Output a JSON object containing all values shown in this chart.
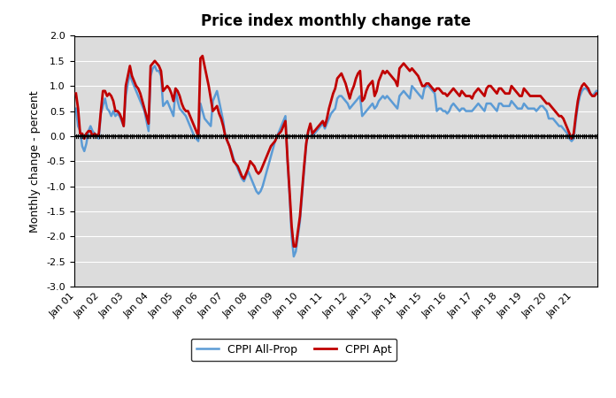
{
  "title": "Price index monthly change rate",
  "ylabel": "Monthly change - percent",
  "ylim": [
    -3.0,
    2.0
  ],
  "yticks": [
    -3.0,
    -2.5,
    -2.0,
    -1.5,
    -1.0,
    -0.5,
    0.0,
    0.5,
    1.0,
    1.5,
    2.0
  ],
  "color_allprop": "#5B9BD5",
  "color_apt": "#C00000",
  "zero_line_color": "#000000",
  "background_color": "#DCDCDC",
  "legend_labels": [
    "CPPI All-Prop",
    "CPPI Apt"
  ],
  "xtick_labels": [
    "Jan 01",
    "Jan 02",
    "Jan 03",
    "Jan 04",
    "Jan 05",
    "Jan 06",
    "Jan 07",
    "Jan 08",
    "Jan 09",
    "Jan 10",
    "Jan 11",
    "Jan 12",
    "Jan 13",
    "Jan 14",
    "Jan 15",
    "Jan 16",
    "Jan 17",
    "Jan 18",
    "Jan 19",
    "Jan 20",
    "Jan 21"
  ],
  "cppi_allprop": [
    0.55,
    0.2,
    0.1,
    -0.2,
    -0.3,
    -0.15,
    0.1,
    0.2,
    0.1,
    0.05,
    0.0,
    -0.05,
    0.45,
    0.6,
    0.75,
    0.55,
    0.5,
    0.4,
    0.5,
    0.4,
    0.45,
    0.4,
    0.3,
    0.2,
    0.8,
    1.05,
    1.25,
    1.1,
    1.0,
    0.9,
    0.8,
    0.7,
    0.6,
    0.5,
    0.3,
    0.1,
    1.2,
    1.35,
    1.4,
    1.3,
    1.3,
    1.2,
    0.6,
    0.65,
    0.7,
    0.6,
    0.5,
    0.4,
    0.95,
    0.7,
    0.55,
    0.5,
    0.45,
    0.4,
    0.3,
    0.2,
    0.1,
    0.0,
    -0.05,
    -0.1,
    0.65,
    0.5,
    0.35,
    0.3,
    0.25,
    0.2,
    0.7,
    0.8,
    0.9,
    0.7,
    0.5,
    0.3,
    0.0,
    -0.1,
    -0.2,
    -0.3,
    -0.45,
    -0.55,
    -0.65,
    -0.75,
    -0.85,
    -0.9,
    -0.8,
    -0.7,
    -0.8,
    -0.9,
    -1.0,
    -1.1,
    -1.15,
    -1.1,
    -1.0,
    -0.85,
    -0.7,
    -0.55,
    -0.4,
    -0.25,
    -0.1,
    0.0,
    0.1,
    0.2,
    0.3,
    0.4,
    -0.5,
    -1.2,
    -2.0,
    -2.4,
    -2.3,
    -2.0,
    -1.7,
    -1.2,
    -0.7,
    -0.2,
    0.1,
    0.2,
    0.0,
    0.05,
    0.1,
    0.15,
    0.2,
    0.25,
    0.15,
    0.25,
    0.35,
    0.45,
    0.5,
    0.55,
    0.75,
    0.8,
    0.8,
    0.75,
    0.7,
    0.65,
    0.55,
    0.6,
    0.65,
    0.7,
    0.75,
    0.8,
    0.4,
    0.45,
    0.5,
    0.55,
    0.6,
    0.65,
    0.55,
    0.6,
    0.7,
    0.75,
    0.8,
    0.75,
    0.8,
    0.75,
    0.7,
    0.65,
    0.6,
    0.55,
    0.8,
    0.85,
    0.9,
    0.85,
    0.8,
    0.75,
    1.0,
    0.95,
    0.9,
    0.85,
    0.8,
    0.75,
    0.95,
    1.0,
    1.0,
    0.95,
    0.9,
    0.85,
    0.5,
    0.55,
    0.55,
    0.5,
    0.5,
    0.45,
    0.5,
    0.6,
    0.65,
    0.6,
    0.55,
    0.5,
    0.55,
    0.55,
    0.5,
    0.5,
    0.5,
    0.5,
    0.55,
    0.6,
    0.65,
    0.6,
    0.55,
    0.5,
    0.65,
    0.65,
    0.65,
    0.6,
    0.55,
    0.5,
    0.65,
    0.65,
    0.6,
    0.6,
    0.6,
    0.6,
    0.7,
    0.65,
    0.6,
    0.55,
    0.55,
    0.55,
    0.65,
    0.6,
    0.55,
    0.55,
    0.55,
    0.55,
    0.5,
    0.55,
    0.6,
    0.6,
    0.55,
    0.5,
    0.35,
    0.35,
    0.35,
    0.3,
    0.25,
    0.2,
    0.2,
    0.15,
    0.1,
    0.05,
    -0.05,
    -0.1,
    -0.05,
    0.3,
    0.6,
    0.8,
    0.9,
    0.95,
    0.95,
    0.9,
    0.85,
    0.8,
    0.85,
    0.9
  ],
  "cppi_apt": [
    0.85,
    0.55,
    0.05,
    0.05,
    -0.05,
    0.05,
    0.1,
    0.1,
    0.0,
    0.05,
    0.0,
    0.05,
    0.5,
    0.9,
    0.9,
    0.8,
    0.85,
    0.8,
    0.7,
    0.5,
    0.5,
    0.45,
    0.35,
    0.2,
    1.0,
    1.2,
    1.4,
    1.2,
    1.1,
    1.0,
    0.95,
    0.85,
    0.7,
    0.55,
    0.4,
    0.25,
    1.4,
    1.45,
    1.5,
    1.45,
    1.4,
    1.3,
    0.9,
    0.95,
    1.0,
    0.95,
    0.85,
    0.7,
    0.95,
    0.9,
    0.8,
    0.65,
    0.55,
    0.5,
    0.5,
    0.4,
    0.3,
    0.2,
    0.1,
    0.0,
    1.55,
    1.6,
    1.4,
    1.2,
    1.0,
    0.75,
    0.5,
    0.55,
    0.6,
    0.45,
    0.35,
    0.2,
    0.0,
    -0.1,
    -0.2,
    -0.35,
    -0.5,
    -0.55,
    -0.6,
    -0.7,
    -0.8,
    -0.85,
    -0.75,
    -0.65,
    -0.5,
    -0.55,
    -0.6,
    -0.7,
    -0.75,
    -0.7,
    -0.6,
    -0.5,
    -0.4,
    -0.3,
    -0.2,
    -0.15,
    -0.1,
    0.0,
    0.05,
    0.1,
    0.2,
    0.3,
    -0.45,
    -1.1,
    -1.8,
    -2.2,
    -2.2,
    -1.9,
    -1.6,
    -1.1,
    -0.6,
    -0.15,
    0.1,
    0.25,
    0.05,
    0.1,
    0.15,
    0.2,
    0.25,
    0.3,
    0.2,
    0.35,
    0.55,
    0.7,
    0.85,
    0.95,
    1.15,
    1.2,
    1.25,
    1.15,
    1.05,
    0.9,
    0.75,
    0.9,
    1.0,
    1.15,
    1.25,
    1.3,
    0.7,
    0.75,
    0.9,
    1.0,
    1.05,
    1.1,
    0.8,
    0.9,
    1.1,
    1.2,
    1.3,
    1.25,
    1.3,
    1.25,
    1.2,
    1.15,
    1.1,
    1.0,
    1.35,
    1.4,
    1.45,
    1.4,
    1.35,
    1.3,
    1.35,
    1.3,
    1.25,
    1.2,
    1.1,
    1.0,
    1.0,
    1.05,
    1.05,
    1.0,
    0.95,
    0.9,
    0.95,
    0.95,
    0.9,
    0.85,
    0.85,
    0.8,
    0.85,
    0.9,
    0.95,
    0.9,
    0.85,
    0.8,
    0.9,
    0.85,
    0.8,
    0.8,
    0.8,
    0.75,
    0.85,
    0.9,
    0.95,
    0.9,
    0.85,
    0.8,
    0.95,
    1.0,
    1.0,
    0.95,
    0.9,
    0.85,
    0.95,
    0.95,
    0.9,
    0.85,
    0.85,
    0.85,
    1.0,
    0.95,
    0.9,
    0.85,
    0.8,
    0.8,
    0.95,
    0.9,
    0.85,
    0.8,
    0.8,
    0.8,
    0.8,
    0.8,
    0.8,
    0.75,
    0.7,
    0.65,
    0.65,
    0.6,
    0.55,
    0.5,
    0.45,
    0.4,
    0.4,
    0.35,
    0.25,
    0.15,
    0.05,
    -0.05,
    0.05,
    0.4,
    0.7,
    0.9,
    1.0,
    1.05,
    1.0,
    0.95,
    0.85,
    0.8,
    0.8,
    0.85
  ]
}
